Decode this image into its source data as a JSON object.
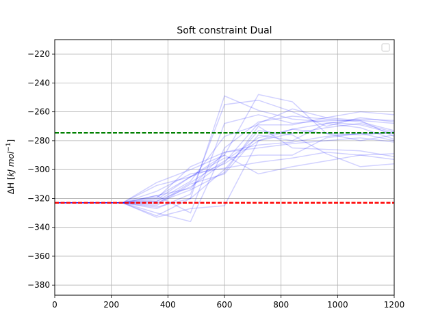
{
  "chart_data": {
    "type": "line",
    "title": "Soft constraint Dual",
    "xlabel": "",
    "ylabel_html": "ΔH [kJ mol⁻¹]",
    "ylabel_parts": [
      "ΔH",
      " [",
      "kJ mol",
      "−1",
      "]"
    ],
    "xlim": [
      0,
      1200
    ],
    "ylim": [
      -387,
      -210
    ],
    "xticks": [
      0,
      200,
      400,
      600,
      800,
      1000,
      1200
    ],
    "yticks": [
      -380,
      -360,
      -340,
      -320,
      -300,
      -280,
      -260,
      -240,
      -220
    ],
    "xtick_labels": [
      "0",
      "200",
      "400",
      "600",
      "800",
      "1000",
      "1200"
    ],
    "ytick_labels": [
      "−380",
      "−360",
      "−340",
      "−320",
      "−300",
      "−280",
      "−260",
      "−240",
      "−220"
    ],
    "grid": true,
    "legend": {
      "position": "upper-right",
      "entries": []
    },
    "reference_lines": [
      {
        "name": "upper-reference",
        "y": -274.5,
        "color": "#008000",
        "style": "dashed"
      },
      {
        "name": "lower-reference",
        "y": -323.0,
        "color": "#ff0000",
        "style": "dashed"
      }
    ],
    "series_color": "#0000ff",
    "series_opacity": 0.18,
    "x": [
      0,
      120,
      240,
      360,
      480,
      600,
      720,
      840,
      960,
      1080,
      1200
    ],
    "series": [
      {
        "name": "run-1",
        "values": [
          -323,
          -323,
          -323,
          -333,
          -327,
          -325,
          -280,
          -275,
          -271,
          -268,
          -274
        ]
      },
      {
        "name": "run-2",
        "values": [
          -323,
          -323,
          -323,
          -330,
          -336,
          -285,
          -267,
          -263,
          -265,
          -267,
          -273
        ]
      },
      {
        "name": "run-3",
        "values": [
          -323,
          -323,
          -323,
          -326,
          -320,
          -300,
          -273,
          -276,
          -289,
          -298,
          -296
        ]
      },
      {
        "name": "run-4",
        "values": [
          -323,
          -323,
          -323,
          -322,
          -312,
          -295,
          -268,
          -258,
          -264,
          -266,
          -277
        ]
      },
      {
        "name": "run-5",
        "values": [
          -323,
          -323,
          -323,
          -325,
          -310,
          -303,
          -276,
          -280,
          -268,
          -271,
          -279
        ]
      },
      {
        "name": "run-6",
        "values": [
          -323,
          -323,
          -323,
          -321,
          -305,
          -292,
          -290,
          -290,
          -278,
          -275,
          -280
        ]
      },
      {
        "name": "run-7",
        "values": [
          -323,
          -323,
          -323,
          -318,
          -313,
          -288,
          -285,
          -282,
          -280,
          -278,
          -281
        ]
      },
      {
        "name": "run-8",
        "values": [
          -323,
          -323,
          -323,
          -315,
          -303,
          -299,
          -295,
          -292,
          -288,
          -290,
          -293
        ]
      },
      {
        "name": "run-9",
        "values": [
          -323,
          -323,
          -323,
          -327,
          -317,
          -255,
          -252,
          -260,
          -270,
          -264,
          -267
        ]
      },
      {
        "name": "run-10",
        "values": [
          -323,
          -323,
          -323,
          -332,
          -320,
          -249,
          -259,
          -265,
          -267,
          -269,
          -275
        ]
      },
      {
        "name": "run-11",
        "values": [
          -323,
          -323,
          -323,
          -320,
          -298,
          -288,
          -283,
          -281,
          -277,
          -275,
          -275
        ]
      },
      {
        "name": "run-12",
        "values": [
          -323,
          -323,
          -323,
          -309,
          -300,
          -290,
          -303,
          -298,
          -294,
          -290,
          -289
        ]
      },
      {
        "name": "run-13",
        "values": [
          -323,
          -323,
          -323,
          -318,
          -330,
          -268,
          -262,
          -268,
          -266,
          -266,
          -268
        ]
      },
      {
        "name": "run-14",
        "values": [
          -323,
          -323,
          -323,
          -322,
          -308,
          -277,
          -269,
          -269,
          -264,
          -260,
          -262
        ]
      },
      {
        "name": "run-15",
        "values": [
          -323,
          -323,
          -323,
          -311,
          -305,
          -290,
          -248,
          -253,
          -275,
          -280,
          -276
        ]
      },
      {
        "name": "run-16",
        "values": [
          -323,
          -323,
          -323,
          -323,
          -314,
          -302,
          -270,
          -285,
          -286,
          -287,
          -291
        ]
      },
      {
        "name": "run-17",
        "values": [
          -323,
          -323,
          -323,
          -324,
          -309,
          -294,
          -278,
          -272,
          -275,
          -276,
          -274
        ]
      },
      {
        "name": "run-18",
        "values": [
          -323,
          -323,
          -323,
          -319,
          -305,
          -296,
          -280,
          -272,
          -268,
          -265,
          -266
        ]
      }
    ]
  }
}
